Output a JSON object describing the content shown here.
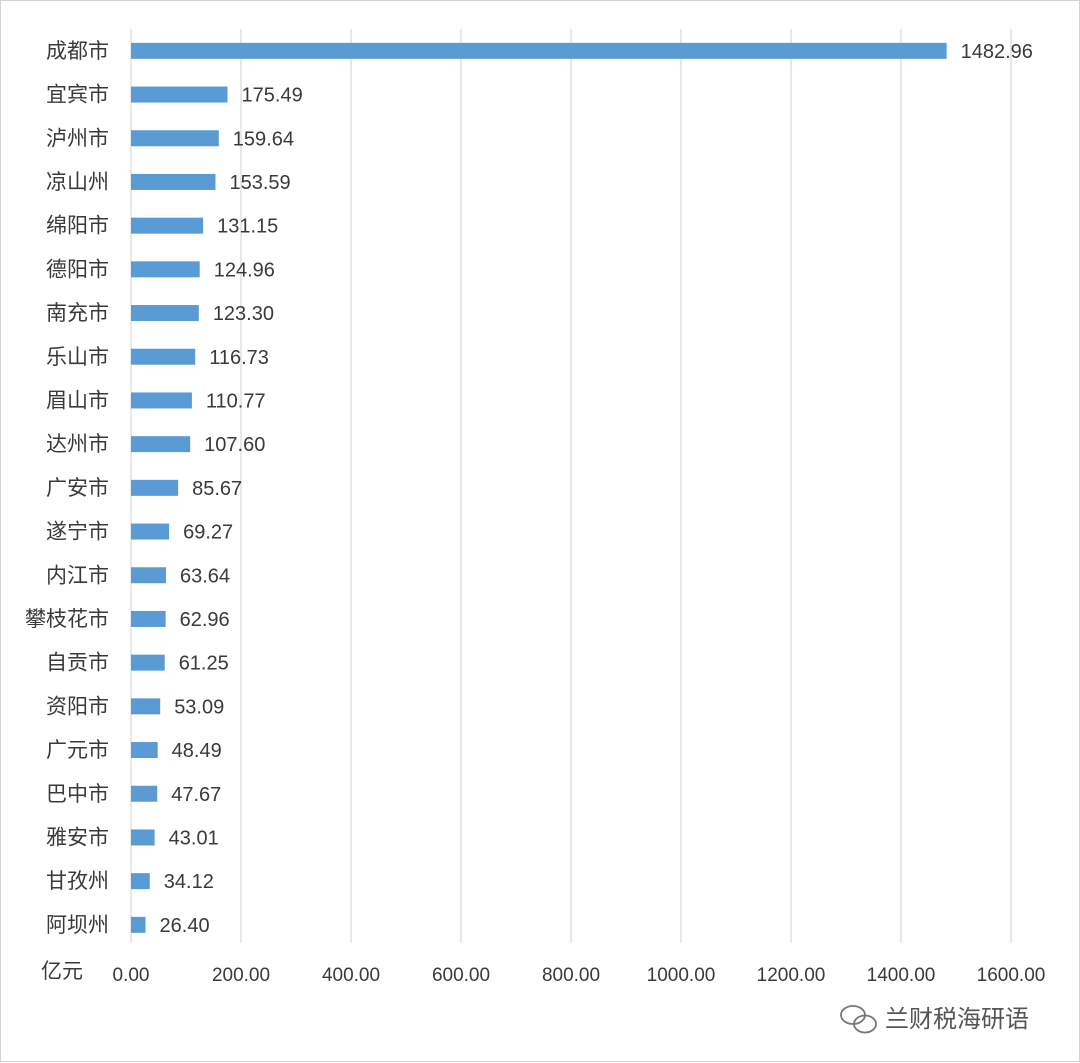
{
  "chart_data": {
    "type": "bar",
    "orientation": "horizontal",
    "categories": [
      "成都市",
      "宜宾市",
      "泸州市",
      "凉山州",
      "绵阳市",
      "德阳市",
      "南充市",
      "乐山市",
      "眉山市",
      "达州市",
      "广安市",
      "遂宁市",
      "内江市",
      "攀枝花市",
      "自贡市",
      "资阳市",
      "广元市",
      "巴中市",
      "雅安市",
      "甘孜州",
      "阿坝州"
    ],
    "values": [
      1482.96,
      175.49,
      159.64,
      153.59,
      131.15,
      124.96,
      123.3,
      116.73,
      110.77,
      107.6,
      85.67,
      69.27,
      63.64,
      62.96,
      61.25,
      53.09,
      48.49,
      47.67,
      43.01,
      34.12,
      26.4
    ],
    "value_labels": [
      "1482.96",
      "175.49",
      "159.64",
      "153.59",
      "131.15",
      "124.96",
      "123.30",
      "116.73",
      "110.77",
      "107.60",
      "85.67",
      "69.27",
      "63.64",
      "62.96",
      "61.25",
      "53.09",
      "48.49",
      "47.67",
      "43.01",
      "34.12",
      "26.40"
    ],
    "x_ticks": [
      "0.00",
      "200.00",
      "400.00",
      "600.00",
      "800.00",
      "1000.00",
      "1200.00",
      "1400.00",
      "1600.00"
    ],
    "xlim": [
      0,
      1600
    ],
    "unit_label": "亿元",
    "grid": true,
    "bar_color": "#5b9bd5",
    "grid_color": "#d9d9d9"
  },
  "watermark": {
    "text": "兰财税海研语",
    "icon": "wechat-icon"
  }
}
